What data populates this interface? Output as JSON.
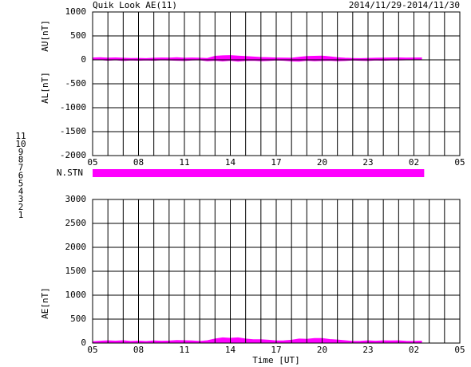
{
  "header": {
    "title": "Quik Look AE(11)",
    "date_range": "2014/11/29-2014/11/30"
  },
  "station_legend": [
    {
      "label": "11",
      "color": "#33ffff"
    },
    {
      "label": "10",
      "color": "#ff00ff"
    },
    {
      "label": "9",
      "color": "#0000cc"
    },
    {
      "label": "8",
      "color": "#ffff66"
    },
    {
      "label": "7",
      "color": "#66ff66"
    },
    {
      "label": "6",
      "color": "#ff0000"
    },
    {
      "label": "5",
      "color": "#e8e8e8"
    },
    {
      "label": "4",
      "color": "#999999"
    },
    {
      "label": "3",
      "color": "#009999"
    },
    {
      "label": "2",
      "color": "#990099"
    },
    {
      "label": "1",
      "color": "#000099"
    }
  ],
  "chart_data": [
    {
      "type": "area",
      "x": [
        0,
        0.5,
        1,
        1.5,
        2,
        2.5,
        3,
        3.5,
        4,
        4.5,
        5,
        5.5,
        6,
        6.5,
        7,
        7.5,
        8,
        8.5,
        9,
        9.5,
        10,
        10.5,
        11,
        11.5,
        12,
        12.5,
        13,
        13.5,
        14,
        14.5,
        15,
        15.5,
        16,
        16.5,
        17,
        17.5,
        18,
        18.5,
        19,
        19.5,
        20,
        20.5,
        21,
        21.5
      ],
      "series": [
        {
          "name": "AU[nT]",
          "color": "#ff00ff",
          "values": [
            40,
            45,
            38,
            42,
            35,
            30,
            32,
            28,
            35,
            40,
            38,
            45,
            35,
            40,
            35,
            30,
            75,
            85,
            90,
            80,
            70,
            60,
            50,
            45,
            40,
            38,
            35,
            55,
            70,
            75,
            80,
            65,
            45,
            35,
            30,
            28,
            32,
            35,
            38,
            40,
            42,
            38,
            40,
            42
          ]
        },
        {
          "name": "AL[nT]",
          "color": "#ff00ff",
          "values": [
            10,
            5,
            -10,
            0,
            -15,
            -5,
            -10,
            -5,
            -10,
            0,
            -5,
            -10,
            -15,
            -5,
            0,
            -20,
            -10,
            -25,
            -10,
            -30,
            -15,
            -10,
            -20,
            -15,
            -5,
            -10,
            -25,
            -30,
            -10,
            -20,
            -15,
            -10,
            -20,
            -15,
            -5,
            -10,
            -15,
            -5,
            -10,
            -5,
            -5,
            0,
            5,
            0
          ]
        }
      ],
      "xlim": [
        0,
        24
      ],
      "xticks": [
        {
          "value": 0,
          "label": "05"
        },
        {
          "value": 3,
          "label": "08"
        },
        {
          "value": 6,
          "label": "11"
        },
        {
          "value": 9,
          "label": "14"
        },
        {
          "value": 12,
          "label": "17"
        },
        {
          "value": 15,
          "label": "20"
        },
        {
          "value": 18,
          "label": "23"
        },
        {
          "value": 21,
          "label": "02"
        },
        {
          "value": 24,
          "label": "05"
        }
      ],
      "xminorticks": [
        1,
        2,
        4,
        5,
        7,
        8,
        10,
        11,
        13,
        14,
        16,
        17,
        19,
        20,
        22,
        23
      ],
      "ylim": [
        -2000,
        1000
      ],
      "yticks": [
        -2000,
        -1500,
        -1000,
        -500,
        0,
        500,
        1000
      ],
      "grid": true
    },
    {
      "type": "timeline",
      "title": "N.STN",
      "segments": [
        {
          "x": [
            0,
            21.67
          ],
          "value": 10,
          "color": "#ff00ff"
        }
      ],
      "xlim": [
        0,
        24
      ]
    },
    {
      "type": "area",
      "x": [
        0,
        0.5,
        1,
        1.5,
        2,
        2.5,
        3,
        3.5,
        4,
        4.5,
        5,
        5.5,
        6,
        6.5,
        7,
        7.5,
        8,
        8.5,
        9,
        9.5,
        10,
        10.5,
        11,
        11.5,
        12,
        12.5,
        13,
        13.5,
        14,
        14.5,
        15,
        15.5,
        16,
        16.5,
        17,
        17.5,
        18,
        18.5,
        19,
        19.5,
        20,
        20.5,
        21,
        21.5
      ],
      "series": [
        {
          "name": "AE[nT]",
          "color": "#ff00ff",
          "values": [
            30,
            40,
            48,
            42,
            50,
            35,
            42,
            33,
            45,
            40,
            43,
            55,
            50,
            45,
            35,
            50,
            85,
            110,
            100,
            110,
            85,
            70,
            70,
            60,
            45,
            48,
            60,
            85,
            80,
            95,
            95,
            75,
            65,
            50,
            35,
            38,
            47,
            40,
            48,
            45,
            47,
            38,
            35,
            42
          ]
        }
      ],
      "xlabel": "Time [UT]",
      "xlim": [
        0,
        24
      ],
      "xticks": [
        {
          "value": 0,
          "label": "05"
        },
        {
          "value": 3,
          "label": "08"
        },
        {
          "value": 6,
          "label": "11"
        },
        {
          "value": 9,
          "label": "14"
        },
        {
          "value": 12,
          "label": "17"
        },
        {
          "value": 15,
          "label": "20"
        },
        {
          "value": 18,
          "label": "23"
        },
        {
          "value": 21,
          "label": "02"
        },
        {
          "value": 24,
          "label": "05"
        }
      ],
      "xminorticks": [
        1,
        2,
        4,
        5,
        7,
        8,
        10,
        11,
        13,
        14,
        16,
        17,
        19,
        20,
        22,
        23
      ],
      "ylim": [
        0,
        3000
      ],
      "yticks": [
        0,
        500,
        1000,
        1500,
        2000,
        2500,
        3000
      ],
      "grid": true
    }
  ]
}
